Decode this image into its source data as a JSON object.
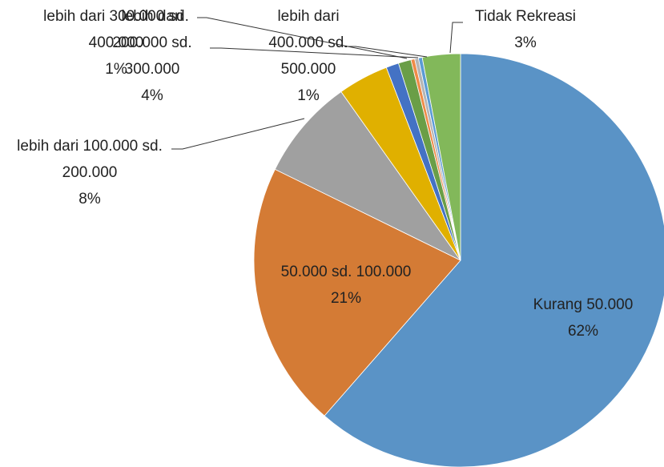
{
  "chart_data": {
    "type": "pie",
    "categories": [
      "Kurang 50.000",
      "50.000 sd. 100.000",
      "lebih dari 100.000 sd. 200.000",
      "lebih dari 200.000 sd. 300.000",
      "lebih dari 300.000 sd. 400.000",
      "lebih dari 400.000 sd. 500.000",
      null,
      null,
      null,
      "Tidak Rekreasi"
    ],
    "values": [
      62,
      21,
      8,
      4,
      1,
      1,
      0.3,
      0.3,
      0.3,
      3
    ],
    "value_labels": [
      "62%",
      "21%",
      "8%",
      "4%",
      "1%",
      "1%",
      null,
      null,
      null,
      "3%"
    ],
    "colors": [
      "#5a93c6",
      "#d47b35",
      "#a0a0a0",
      "#e0b000",
      "#4472c4",
      "#6a9e47",
      "#ef8b48",
      "#b5b5b5",
      "#5b9bd5",
      "#82b85a"
    ]
  }
}
